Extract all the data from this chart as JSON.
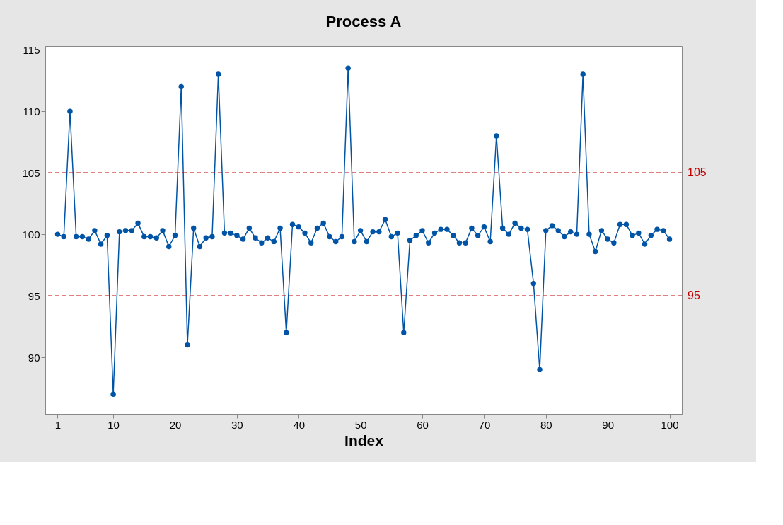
{
  "chart_data": {
    "type": "line",
    "title": "Process A",
    "xlabel": "Index",
    "x": [
      1,
      2,
      3,
      4,
      5,
      6,
      7,
      8,
      9,
      10,
      11,
      12,
      13,
      14,
      15,
      16,
      17,
      18,
      19,
      20,
      21,
      22,
      23,
      24,
      25,
      26,
      27,
      28,
      29,
      30,
      31,
      32,
      33,
      34,
      35,
      36,
      37,
      38,
      39,
      40,
      41,
      42,
      43,
      44,
      45,
      46,
      47,
      48,
      49,
      50,
      51,
      52,
      53,
      54,
      55,
      56,
      57,
      58,
      59,
      60,
      61,
      62,
      63,
      64,
      65,
      66,
      67,
      68,
      69,
      70,
      71,
      72,
      73,
      74,
      75,
      76,
      77,
      78,
      79,
      80,
      81,
      82,
      83,
      84,
      85,
      86,
      87,
      88,
      89,
      90,
      91,
      92,
      93,
      94,
      95,
      96,
      97,
      98,
      99,
      100
    ],
    "series": [
      {
        "color": "#0054a6",
        "values": [
          100.0,
          99.8,
          110,
          99.8,
          99.8,
          99.6,
          100.3,
          99.2,
          99.9,
          87,
          100.2,
          100.3,
          100.3,
          100.9,
          99.8,
          99.8,
          99.7,
          100.3,
          99.0,
          99.9,
          112,
          91,
          100.5,
          99.0,
          99.7,
          99.8,
          113,
          100.1,
          100.1,
          99.9,
          99.6,
          100.5,
          99.7,
          99.3,
          99.7,
          99.4,
          100.5,
          92,
          100.8,
          100.6,
          100.1,
          99.3,
          100.5,
          100.9,
          99.8,
          99.4,
          99.8,
          113.5,
          99.4,
          100.3,
          99.4,
          100.2,
          100.2,
          101.2,
          99.8,
          100.1,
          92,
          99.5,
          99.9,
          100.3,
          99.3,
          100.1,
          100.4,
          100.4,
          99.9,
          99.3,
          99.3,
          100.5,
          99.9,
          100.6,
          99.4,
          108,
          100.5,
          100.0,
          100.9,
          100.5,
          100.4,
          96,
          89,
          100.3,
          100.7,
          100.3,
          99.8,
          100.2,
          100.0,
          113,
          100.0,
          98.6,
          100.3,
          99.6,
          99.3,
          100.8,
          100.8,
          99.9,
          100.1,
          99.2,
          99.9,
          100.4,
          100.3,
          99.6
        ]
      }
    ],
    "xlim": [
      -1,
      102
    ],
    "xticks": [
      1,
      10,
      20,
      30,
      40,
      50,
      60,
      70,
      80,
      90,
      100
    ],
    "ylim": [
      85.4,
      115.3
    ],
    "yticks": [
      90,
      95,
      100,
      105,
      110,
      115
    ],
    "ref_lines": [
      {
        "axis": "y",
        "value": 105,
        "label": "105",
        "color": "#c00000",
        "line_style": "dashed"
      },
      {
        "axis": "y",
        "value": 95,
        "label": "95",
        "color": "#c00000",
        "line_style": "dashed"
      }
    ],
    "marker": "circle",
    "line_style": "solid",
    "grid": false
  }
}
